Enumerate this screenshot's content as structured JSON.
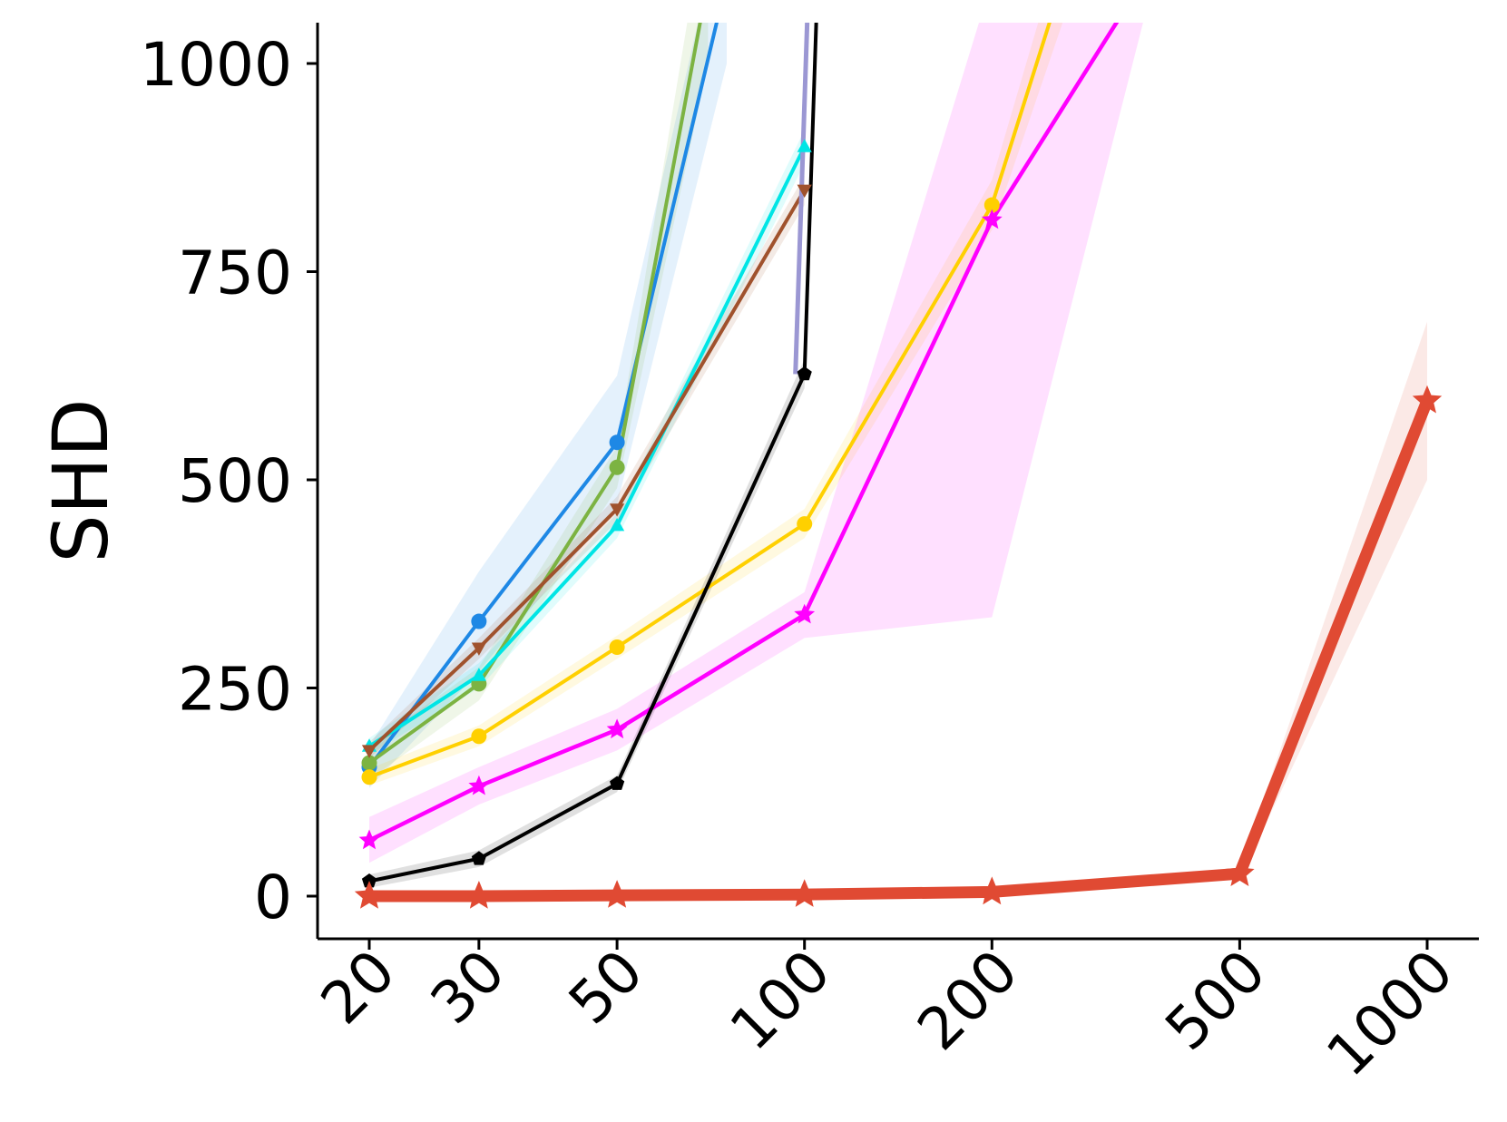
{
  "chart_data": {
    "type": "line",
    "title": "",
    "xlabel": "",
    "ylabel": "SHD",
    "x_scale": "log",
    "xlim": [
      20,
      1000
    ],
    "ylim": [
      -50,
      1050
    ],
    "x_ticks": [
      20,
      30,
      50,
      100,
      200,
      500,
      1000
    ],
    "y_ticks": [
      0,
      250,
      500,
      750,
      1000
    ],
    "grid": false,
    "legend": "none",
    "series": [
      {
        "color": "#1e88e5",
        "marker": "circle",
        "width": 4,
        "x": [
          20,
          30,
          50,
          75
        ],
        "y": [
          155,
          330,
          545,
          1100
        ],
        "band": [
          [
            130,
            180
          ],
          [
            270,
            390
          ],
          [
            470,
            625
          ],
          [
            1000,
            1200
          ]
        ]
      },
      {
        "color": "#7cb342",
        "marker": "circle",
        "width": 4,
        "x": [
          20,
          30,
          50,
          70
        ],
        "y": [
          160,
          255,
          515,
          1100
        ],
        "band": [
          [
            140,
            180
          ],
          [
            235,
            275
          ],
          [
            490,
            540
          ],
          [
            1000,
            1200
          ]
        ]
      },
      {
        "color": "#00e5e5",
        "marker": "triangle-up",
        "width": 4,
        "x": [
          20,
          30,
          50,
          100
        ],
        "y": [
          180,
          265,
          445,
          900
        ],
        "band": [
          [
            170,
            190
          ],
          [
            250,
            280
          ],
          [
            430,
            460
          ],
          [
            880,
            920
          ]
        ]
      },
      {
        "color": "#a0522d",
        "marker": "triangle-down",
        "width": 4,
        "x": [
          20,
          30,
          50,
          100
        ],
        "y": [
          175,
          298,
          465,
          848
        ],
        "band": [
          [
            165,
            185
          ],
          [
            285,
            310
          ],
          [
            450,
            480
          ],
          [
            830,
            865
          ]
        ]
      },
      {
        "color": "#ffd000",
        "marker": "circle",
        "width": 4,
        "x": [
          20,
          30,
          50,
          100,
          200,
          260
        ],
        "y": [
          143,
          192,
          299,
          447,
          830,
          1100
        ],
        "band": [
          [
            133,
            153
          ],
          [
            180,
            205
          ],
          [
            285,
            313
          ],
          [
            430,
            465
          ],
          [
            800,
            860
          ],
          [
            1050,
            1150
          ]
        ]
      },
      {
        "color": "#ff00ff",
        "marker": "star",
        "width": 4.5,
        "x": [
          20,
          30,
          50,
          100,
          200,
          350
        ],
        "y": [
          67,
          132,
          200,
          338,
          812,
          1100
        ],
        "band": [
          [
            40,
            95
          ],
          [
            110,
            155
          ],
          [
            175,
            225
          ],
          [
            310,
            365
          ],
          [
            335,
            1100
          ],
          [
            1050,
            1150
          ]
        ]
      },
      {
        "color": "#000000",
        "marker": "pentagon",
        "width": 4,
        "x": [
          20,
          30,
          50,
          100,
          105
        ],
        "y": [
          18,
          45,
          135,
          627,
          1100
        ],
        "band": [
          [
            10,
            26
          ],
          [
            35,
            55
          ],
          [
            125,
            145
          ],
          [
            610,
            645
          ],
          [
            1050,
            1150
          ]
        ],
        "spike_color": "#9b97d3"
      },
      {
        "color": "#e04a33",
        "marker": "star",
        "width": 13,
        "x": [
          20,
          30,
          50,
          100,
          200,
          500,
          1000
        ],
        "y": [
          0,
          0,
          1,
          2,
          5,
          27,
          595
        ],
        "band": [
          [
            -3,
            3
          ],
          [
            -3,
            3
          ],
          [
            -2,
            4
          ],
          [
            -1,
            5
          ],
          [
            2,
            8
          ],
          [
            20,
            34
          ],
          [
            500,
            690
          ]
        ]
      }
    ]
  }
}
